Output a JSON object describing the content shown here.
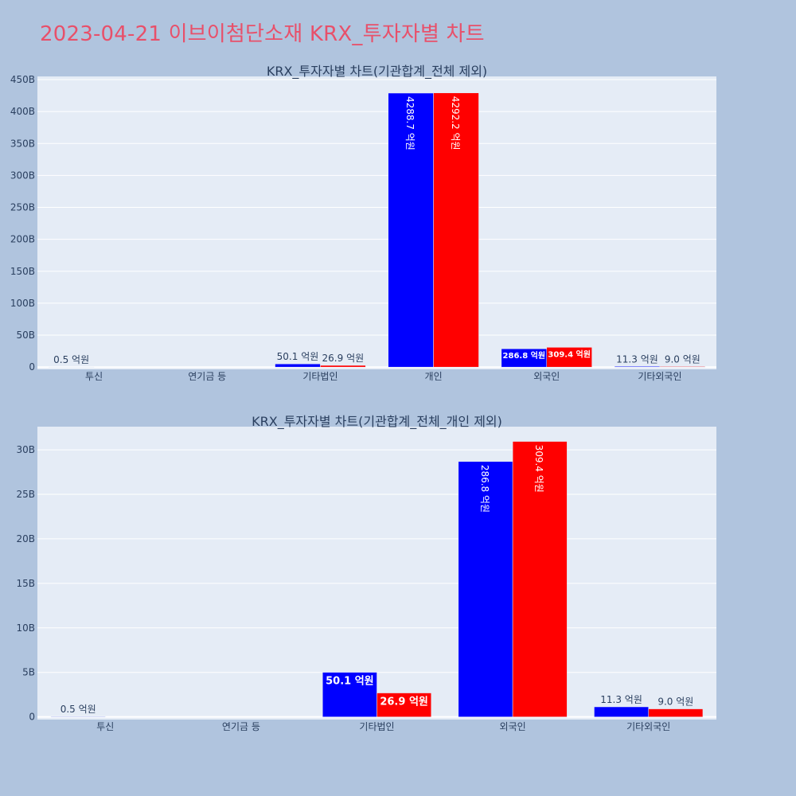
{
  "title": "2023-04-21 이브이첨단소재 KRX_투자자별 차트",
  "colors": {
    "background": "#b0c4de",
    "plot_bg": "#e5ecf6",
    "grid": "#ffffff",
    "buy": "#0000ff",
    "sell": "#ff0000",
    "title": "#e8506a",
    "text": "#2a3f5f"
  },
  "chart_data": [
    {
      "type": "bar",
      "title": "KRX_투자자별 차트(기관합계_전체 제외)",
      "categories": [
        "투신",
        "연기금 등",
        "기타법인",
        "개인",
        "외국인",
        "기타외국인"
      ],
      "series": [
        {
          "color": "#0000ff",
          "values": [
            0.05,
            0,
            5.01,
            428.87,
            28.68,
            1.13
          ],
          "labels": [
            "0.5 억원",
            "",
            "50.1 억원",
            "4288.7 억원",
            "286.8 억원",
            "11.3 억원"
          ]
        },
        {
          "color": "#ff0000",
          "values": [
            0,
            0,
            2.69,
            429.22,
            30.94,
            0.9
          ],
          "labels": [
            "",
            "",
            "26.9 억원",
            "4292.2 억원",
            "309.4 억원",
            "9.0 억원"
          ]
        }
      ],
      "ylim": [
        -3.5,
        455
      ],
      "yticks": [
        0,
        50,
        100,
        150,
        200,
        250,
        300,
        350,
        400,
        450
      ],
      "ytick_labels": [
        "0",
        "50B",
        "100B",
        "150B",
        "200B",
        "250B",
        "300B",
        "350B",
        "400B",
        "450B"
      ]
    },
    {
      "type": "bar",
      "title": "KRX_투자자별 차트(기관합계_전체_개인 제외)",
      "categories": [
        "투신",
        "연기금 등",
        "기타법인",
        "외국인",
        "기타외국인"
      ],
      "series": [
        {
          "color": "#0000ff",
          "values": [
            0.05,
            0,
            5.01,
            28.68,
            1.13
          ],
          "labels": [
            "0.5 억원",
            "",
            "50.1 억원",
            "286.8 억원",
            "11.3 억원"
          ]
        },
        {
          "color": "#ff0000",
          "values": [
            0,
            0,
            2.69,
            30.94,
            0.9
          ],
          "labels": [
            "",
            "",
            "26.9 억원",
            "309.4 억원",
            "9.0 억원"
          ]
        }
      ],
      "ylim": [
        -0.3,
        32.6
      ],
      "yticks": [
        0,
        5,
        10,
        15,
        20,
        25,
        30
      ],
      "ytick_labels": [
        "0",
        "5B",
        "10B",
        "15B",
        "20B",
        "25B",
        "30B"
      ]
    }
  ]
}
